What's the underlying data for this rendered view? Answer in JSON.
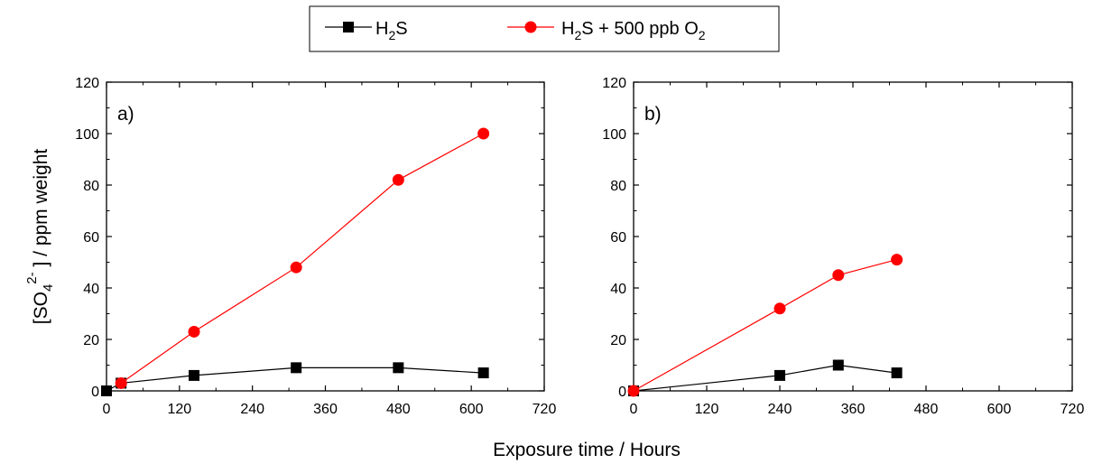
{
  "legend": {
    "entries": [
      {
        "base": "H",
        "sub1": "2",
        "rest": "S",
        "sub2": "",
        "color": "#000000",
        "marker": "square"
      },
      {
        "base": "H",
        "sub1": "2",
        "rest": "S + 500 ppb O",
        "sub2": "2",
        "color": "#ff0000",
        "marker": "circle"
      }
    ]
  },
  "xlabel": "Exposure time / Hours",
  "ylabel": {
    "pre": "[SO",
    "sub": "4",
    "sup": "2-",
    "post": " ] / ppm weight"
  },
  "chart_data": [
    {
      "type": "line",
      "panel_label": "a)",
      "xlim": [
        0,
        720
      ],
      "ylim": [
        0,
        120
      ],
      "xticks": [
        0,
        120,
        240,
        360,
        480,
        600,
        720
      ],
      "yticks": [
        0,
        20,
        40,
        60,
        80,
        100,
        120
      ],
      "grid": false,
      "series": [
        {
          "name": "H2S",
          "color": "#000000",
          "marker": "square",
          "x": [
            0,
            24,
            144,
            312,
            480,
            620
          ],
          "y": [
            0,
            3,
            6,
            9,
            9,
            7
          ]
        },
        {
          "name": "H2S + 500 ppb O2",
          "color": "#ff0000",
          "marker": "circle",
          "x": [
            24,
            144,
            312,
            480,
            620
          ],
          "y": [
            3,
            23,
            48,
            82,
            100
          ]
        }
      ]
    },
    {
      "type": "line",
      "panel_label": "b)",
      "xlim": [
        0,
        720
      ],
      "ylim": [
        0,
        120
      ],
      "xticks": [
        0,
        120,
        240,
        360,
        480,
        600,
        720
      ],
      "yticks": [
        0,
        20,
        40,
        60,
        80,
        100,
        120
      ],
      "grid": false,
      "series": [
        {
          "name": "H2S",
          "color": "#000000",
          "marker": "square",
          "x": [
            0,
            240,
            336,
            432
          ],
          "y": [
            0,
            6,
            10,
            7
          ]
        },
        {
          "name": "H2S + 500 ppb O2",
          "color": "#ff0000",
          "marker": "circle",
          "x": [
            0,
            240,
            336,
            432
          ],
          "y": [
            0,
            32,
            45,
            51
          ]
        }
      ]
    }
  ]
}
